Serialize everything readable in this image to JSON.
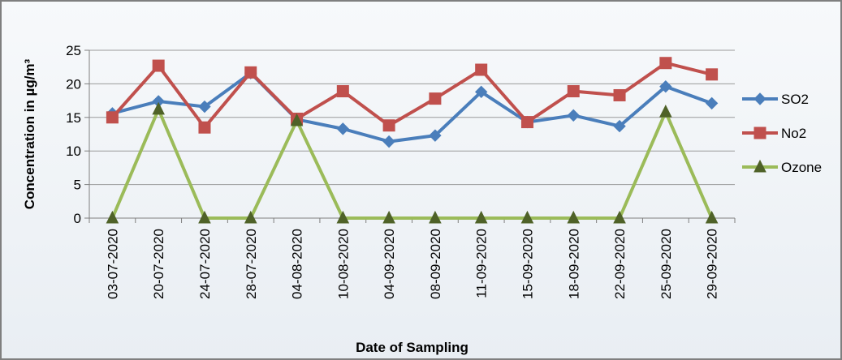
{
  "chart_data": {
    "type": "line",
    "title": "",
    "xlabel": "Date of Sampling",
    "ylabel": "Concentration in µg/m³",
    "ylim": [
      0,
      25
    ],
    "yticks": [
      0,
      5,
      10,
      15,
      20,
      25
    ],
    "grid": true,
    "legend_position": "right",
    "categories": [
      "03-07-2020",
      "20-07-2020",
      "24-07-2020",
      "28-07-2020",
      "04-08-2020",
      "10-08-2020",
      "04-09-2020",
      "08-09-2020",
      "11-09-2020",
      "15-09-2020",
      "18-09-2020",
      "22-09-2020",
      "25-09-2020",
      "29-09-2020"
    ],
    "series": [
      {
        "name": "SO2",
        "color": "#4a7ebb",
        "marker": "diamond",
        "values": [
          15.6,
          17.4,
          16.6,
          21.6,
          14.7,
          13.3,
          11.4,
          12.3,
          18.8,
          14.3,
          15.3,
          13.7,
          19.6,
          17.1
        ]
      },
      {
        "name": "No2",
        "color": "#c0504d",
        "marker": "square",
        "values": [
          15.0,
          22.7,
          13.5,
          21.7,
          14.8,
          18.9,
          13.8,
          17.8,
          22.1,
          14.3,
          18.9,
          18.3,
          23.1,
          21.4
        ]
      },
      {
        "name": "Ozone",
        "color": "#9bbb59",
        "marker": "triangle",
        "values": [
          0,
          16.2,
          0,
          0,
          14.5,
          0,
          0,
          0,
          0,
          0,
          0,
          0,
          15.8,
          0
        ]
      }
    ]
  }
}
